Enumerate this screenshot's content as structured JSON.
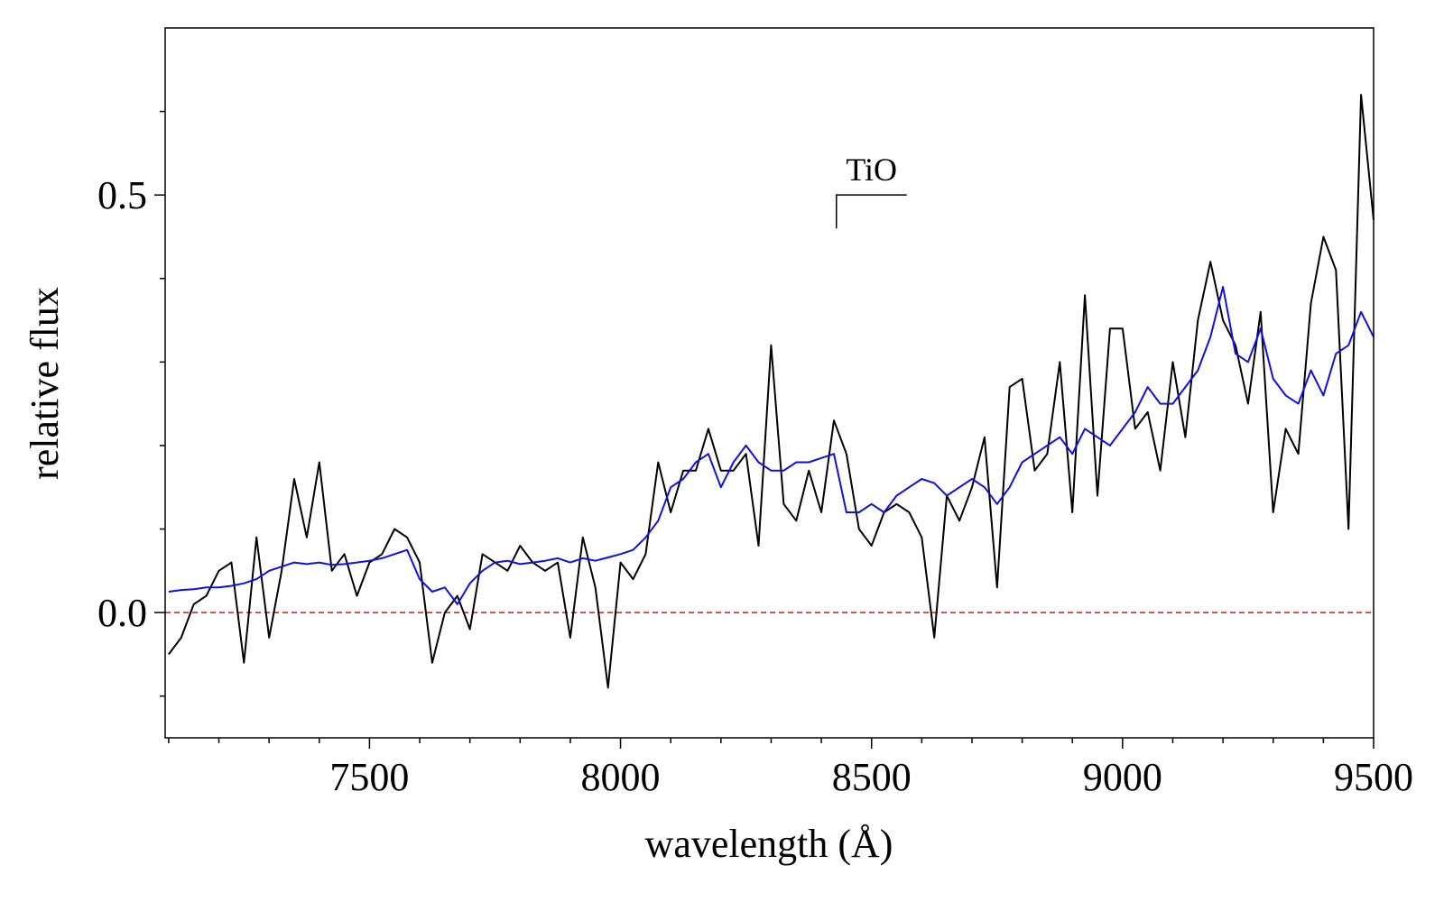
{
  "chart_data": {
    "type": "line",
    "xlabel": "wavelength (Å)",
    "ylabel": "relative flux",
    "xlim": [
      7093,
      9500
    ],
    "ylim": [
      -0.15,
      0.7
    ],
    "xticks": [
      7500,
      8000,
      8500,
      9000,
      9500
    ],
    "yticks": [
      {
        "value": 0,
        "label": "0.0"
      },
      0.5
    ],
    "xminorticks": [
      7100,
      7200,
      7300,
      7400,
      7600,
      7700,
      7800,
      7900,
      8100,
      8200,
      8300,
      8400,
      8600,
      8700,
      8800,
      8900,
      9100,
      9200,
      9300,
      9400
    ],
    "yminorticks": [
      -0.1,
      0.1,
      0.2,
      0.3,
      0.4,
      0.6
    ],
    "hline": {
      "y": 0,
      "color": "#e01010",
      "dashed": true
    },
    "annotations": [
      {
        "text": "TiO",
        "x": 8430,
        "x_end": 8570,
        "y": 0.5,
        "y_end": 0.46
      }
    ],
    "x": [
      7100,
      7125,
      7150,
      7175,
      7200,
      7225,
      7250,
      7275,
      7300,
      7325,
      7350,
      7375,
      7400,
      7425,
      7450,
      7475,
      7500,
      7525,
      7550,
      7575,
      7600,
      7625,
      7650,
      7675,
      7700,
      7725,
      7750,
      7775,
      7800,
      7825,
      7850,
      7875,
      7900,
      7925,
      7950,
      7975,
      8000,
      8025,
      8050,
      8075,
      8100,
      8125,
      8150,
      8175,
      8200,
      8225,
      8250,
      8275,
      8300,
      8325,
      8350,
      8375,
      8400,
      8425,
      8450,
      8475,
      8500,
      8525,
      8550,
      8575,
      8600,
      8625,
      8650,
      8675,
      8700,
      8725,
      8750,
      8775,
      8800,
      8825,
      8850,
      8875,
      8900,
      8925,
      8950,
      8975,
      9000,
      9025,
      9050,
      9075,
      9100,
      9125,
      9150,
      9175,
      9200,
      9225,
      9250,
      9275,
      9300,
      9325,
      9350,
      9375,
      9400,
      9425,
      9450,
      9475,
      9500
    ],
    "series": [
      {
        "color": "#000000",
        "values": [
          -0.05,
          -0.03,
          0.01,
          0.02,
          0.05,
          0.06,
          -0.06,
          0.09,
          -0.03,
          0.05,
          0.16,
          0.09,
          0.18,
          0.05,
          0.07,
          0.02,
          0.06,
          0.07,
          0.1,
          0.09,
          0.06,
          -0.06,
          0.0,
          0.02,
          -0.02,
          0.07,
          0.06,
          0.05,
          0.08,
          0.06,
          0.05,
          0.06,
          -0.03,
          0.09,
          0.03,
          -0.09,
          0.06,
          0.04,
          0.07,
          0.18,
          0.12,
          0.17,
          0.17,
          0.22,
          0.17,
          0.17,
          0.19,
          0.08,
          0.32,
          0.13,
          0.11,
          0.17,
          0.12,
          0.23,
          0.19,
          0.1,
          0.08,
          0.12,
          0.13,
          0.12,
          0.09,
          -0.03,
          0.14,
          0.11,
          0.15,
          0.21,
          0.03,
          0.27,
          0.28,
          0.17,
          0.19,
          0.3,
          0.12,
          0.38,
          0.14,
          0.34,
          0.34,
          0.22,
          0.24,
          0.17,
          0.3,
          0.21,
          0.35,
          0.42,
          0.35,
          0.32,
          0.25,
          0.36,
          0.12,
          0.22,
          0.19,
          0.37,
          0.45,
          0.41,
          0.1,
          0.62,
          0.47
        ]
      },
      {
        "color": "#1010e0",
        "values": [
          0.025,
          0.027,
          0.028,
          0.03,
          0.03,
          0.032,
          0.035,
          0.04,
          0.05,
          0.055,
          0.06,
          0.058,
          0.06,
          0.057,
          0.058,
          0.06,
          0.062,
          0.065,
          0.07,
          0.075,
          0.04,
          0.025,
          0.03,
          0.01,
          0.035,
          0.05,
          0.06,
          0.062,
          0.058,
          0.06,
          0.062,
          0.065,
          0.06,
          0.065,
          0.062,
          0.066,
          0.07,
          0.075,
          0.09,
          0.11,
          0.15,
          0.16,
          0.18,
          0.19,
          0.15,
          0.18,
          0.2,
          0.18,
          0.17,
          0.17,
          0.18,
          0.18,
          0.185,
          0.19,
          0.12,
          0.12,
          0.13,
          0.12,
          0.14,
          0.15,
          0.16,
          0.155,
          0.14,
          0.15,
          0.16,
          0.15,
          0.13,
          0.15,
          0.18,
          0.19,
          0.2,
          0.21,
          0.19,
          0.22,
          0.21,
          0.2,
          0.22,
          0.24,
          0.27,
          0.25,
          0.25,
          0.27,
          0.29,
          0.33,
          0.39,
          0.31,
          0.3,
          0.34,
          0.28,
          0.26,
          0.25,
          0.29,
          0.26,
          0.31,
          0.32,
          0.36,
          0.33
        ]
      }
    ]
  }
}
